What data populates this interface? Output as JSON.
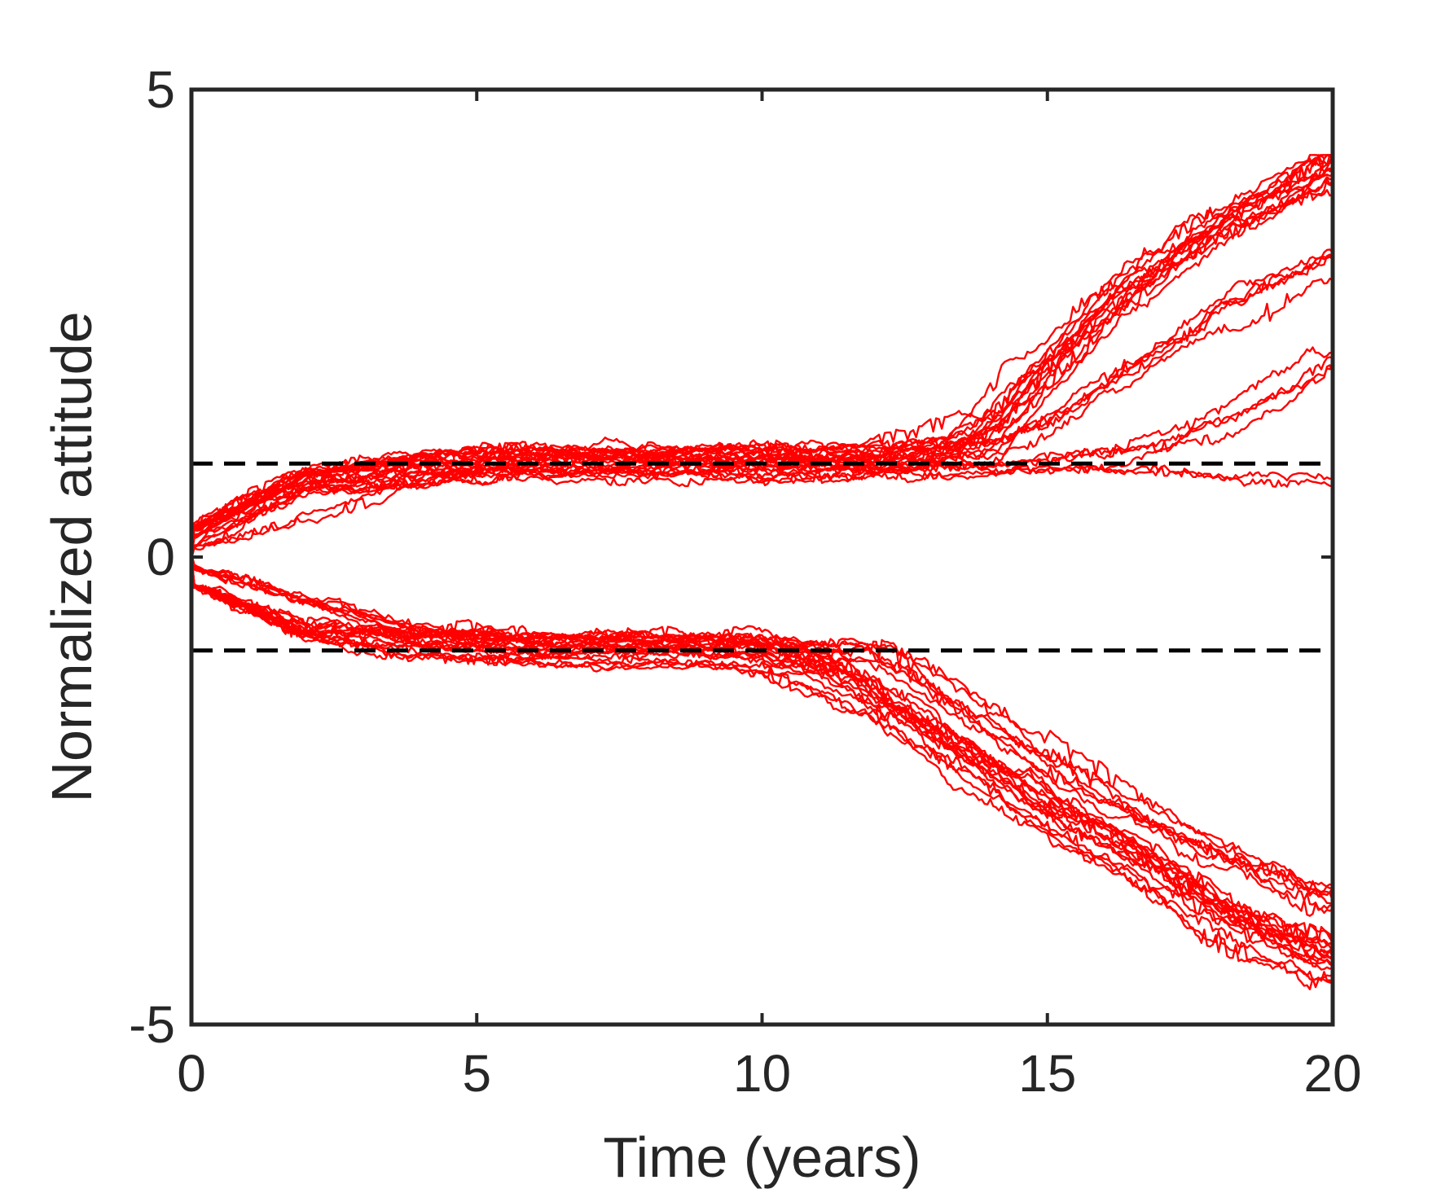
{
  "chart_data": {
    "type": "line",
    "title": "",
    "xlabel": "Time (years)",
    "ylabel": "Normalized attitude",
    "xlim": [
      0,
      20
    ],
    "ylim": [
      -5,
      5
    ],
    "xticks": [
      0,
      5,
      10,
      15,
      20
    ],
    "yticks": [
      -5,
      0,
      5
    ],
    "xtick_labels": [
      "0",
      "5",
      "10",
      "15",
      "20"
    ],
    "ytick_labels": [
      "-5",
      "0",
      "5"
    ],
    "grid": false,
    "legend": "none",
    "series_color": "#ff0000",
    "reference_color": "#000000",
    "axis_color": "#262626",
    "reference_lines": [
      {
        "y": 1,
        "style": "dashed"
      },
      {
        "y": -1,
        "style": "dashed"
      }
    ],
    "n_trajectories": 48,
    "series_envelopes": [
      {
        "group": "upper",
        "count": 14,
        "t": [
          0,
          2,
          4,
          6,
          8,
          10,
          12,
          13,
          14,
          15,
          16,
          17,
          18,
          19,
          20
        ],
        "y": [
          0.3,
          0.85,
          0.95,
          1.0,
          1.0,
          1.0,
          1.0,
          1.1,
          1.3,
          2.0,
          2.6,
          3.1,
          3.5,
          3.8,
          4.15
        ]
      },
      {
        "group": "upper-late",
        "count": 5,
        "t": [
          0,
          2,
          4,
          6,
          8,
          10,
          12,
          14,
          15,
          16,
          17,
          18,
          19,
          20
        ],
        "y": [
          0.2,
          0.8,
          0.95,
          1.0,
          1.0,
          1.0,
          1.0,
          1.05,
          1.3,
          1.7,
          2.1,
          2.5,
          2.8,
          3.1
        ]
      },
      {
        "group": "upper-slow",
        "count": 4,
        "t": [
          0,
          2,
          4,
          6,
          8,
          10,
          12,
          14,
          16,
          17,
          18,
          19,
          20
        ],
        "y": [
          0.1,
          0.7,
          0.9,
          1.0,
          1.0,
          1.0,
          1.0,
          1.0,
          1.1,
          1.3,
          1.5,
          1.8,
          2.2
        ]
      },
      {
        "group": "upper-flat",
        "count": 2,
        "t": [
          0,
          2,
          4,
          6,
          8,
          10,
          12,
          14,
          16,
          18,
          20
        ],
        "y": [
          0.1,
          0.5,
          0.9,
          1.0,
          1.0,
          1.0,
          1.0,
          1.0,
          1.0,
          0.95,
          0.9
        ]
      },
      {
        "group": "lower",
        "count": 16,
        "t": [
          0,
          2,
          4,
          6,
          8,
          10,
          11,
          12,
          13,
          14,
          15,
          16,
          17,
          18,
          19,
          20
        ],
        "y": [
          -0.3,
          -0.8,
          -0.95,
          -1.0,
          -1.0,
          -1.05,
          -1.2,
          -1.5,
          -1.9,
          -2.3,
          -2.7,
          -3.0,
          -3.4,
          -3.8,
          -4.1,
          -4.35
        ]
      },
      {
        "group": "lower-slow",
        "count": 7,
        "t": [
          0,
          2,
          4,
          6,
          8,
          10,
          12,
          13,
          14,
          15,
          16,
          17,
          18,
          19,
          20
        ],
        "y": [
          -0.1,
          -0.5,
          -0.9,
          -1.0,
          -1.0,
          -1.0,
          -1.1,
          -1.4,
          -1.8,
          -2.2,
          -2.6,
          -2.9,
          -3.2,
          -3.5,
          -3.7
        ]
      }
    ]
  }
}
